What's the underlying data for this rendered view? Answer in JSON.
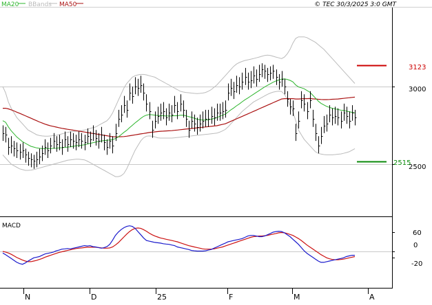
{
  "header": {
    "legend": [
      {
        "label": "MA20",
        "color": "#2db52d"
      },
      {
        "label": "BBands",
        "color": "#bbbbbb"
      },
      {
        "label": "MA50",
        "color": "#aa1111"
      }
    ],
    "credit": "© TEC 30/3/2025 3:0 GMT"
  },
  "levels": {
    "resistance": {
      "label": "3123",
      "value": 3123,
      "color": "#cc0000"
    },
    "support": {
      "label": "2515",
      "value": 2515,
      "color": "#0a8a0a"
    }
  },
  "price_axis": {
    "ticks": [
      "3000",
      "2500"
    ],
    "values": [
      3000,
      2500
    ],
    "ylim": [
      1800,
      3450
    ]
  },
  "macd_panel": {
    "title": "MACD",
    "ticks": [
      "60",
      "0",
      "-20"
    ],
    "values": [
      60,
      0,
      -20
    ],
    "ylim": [
      -45,
      85
    ]
  },
  "time_axis": {
    "labels": [
      "N",
      "D",
      "25",
      "F",
      "M",
      "A"
    ]
  },
  "colors": {
    "bars": "#000000",
    "macd_line": "#1a1acc",
    "signal_line": "#cc1111",
    "grid": "#c8c8c8"
  },
  "chart_data": [
    {
      "type": "ohlc",
      "title": "",
      "y_unit": "price",
      "ylim": [
        1800,
        3450
      ],
      "grid": true,
      "x_labels": [
        "N",
        "D",
        "25",
        "F",
        "M",
        "A"
      ],
      "close": [
        2700,
        2690,
        2610,
        2620,
        2600,
        2590,
        2580,
        2590,
        2560,
        2540,
        2530,
        2520,
        2530,
        2550,
        2570,
        2610,
        2590,
        2620,
        2650,
        2630,
        2640,
        2610,
        2660,
        2630,
        2660,
        2650,
        2640,
        2660,
        2650,
        2640,
        2680,
        2660,
        2700,
        2670,
        2650,
        2690,
        2640,
        2610,
        2650,
        2620,
        2700,
        2790,
        2820,
        2880,
        2850,
        2960,
        2940,
        3000,
        2990,
        3010,
        2960,
        2890,
        2840,
        2720,
        2780,
        2810,
        2830,
        2840,
        2800,
        2830,
        2820,
        2880,
        2840,
        2890,
        2850,
        2790,
        2720,
        2780,
        2760,
        2740,
        2760,
        2780,
        2790,
        2790,
        2810,
        2800,
        2830,
        2830,
        2840,
        2850,
        2960,
        2990,
        2970,
        3010,
        3000,
        3030,
        3060,
        3030,
        3040,
        3070,
        3050,
        3080,
        3110,
        3100,
        3080,
        3090,
        3100,
        3060,
        3030,
        3050,
        3000,
        2920,
        2870,
        2860,
        2700,
        2780,
        2910,
        2890,
        2840,
        2910,
        2790,
        2700,
        2620,
        2680,
        2750,
        2760,
        2820,
        2800,
        2810,
        2800,
        2780,
        2830,
        2810,
        2780,
        2830,
        2800
      ],
      "high": [
        2750,
        2740,
        2670,
        2680,
        2650,
        2640,
        2630,
        2640,
        2600,
        2580,
        2570,
        2560,
        2580,
        2600,
        2620,
        2660,
        2640,
        2670,
        2700,
        2680,
        2690,
        2660,
        2710,
        2680,
        2710,
        2700,
        2690,
        2710,
        2700,
        2690,
        2730,
        2710,
        2750,
        2720,
        2700,
        2740,
        2690,
        2660,
        2700,
        2680,
        2760,
        2850,
        2880,
        2940,
        2910,
        3020,
        3000,
        3060,
        3050,
        3070,
        3020,
        2950,
        2900,
        2780,
        2840,
        2870,
        2890,
        2900,
        2860,
        2890,
        2880,
        2940,
        2900,
        2950,
        2910,
        2850,
        2780,
        2840,
        2820,
        2800,
        2820,
        2840,
        2850,
        2850,
        2870,
        2860,
        2890,
        2890,
        2900,
        2910,
        3020,
        3050,
        3030,
        3070,
        3060,
        3090,
        3120,
        3090,
        3100,
        3130,
        3110,
        3140,
        3150,
        3140,
        3120,
        3130,
        3140,
        3110,
        3080,
        3100,
        3050,
        2970,
        2920,
        2910,
        2760,
        2840,
        2970,
        2950,
        2900,
        2970,
        2850,
        2760,
        2680,
        2740,
        2810,
        2820,
        2880,
        2860,
        2870,
        2860,
        2840,
        2890,
        2870,
        2840,
        2880,
        2850
      ],
      "low": [
        2650,
        2640,
        2560,
        2570,
        2550,
        2540,
        2530,
        2540,
        2510,
        2490,
        2480,
        2470,
        2480,
        2500,
        2520,
        2560,
        2540,
        2570,
        2600,
        2580,
        2590,
        2560,
        2610,
        2580,
        2610,
        2600,
        2590,
        2610,
        2600,
        2590,
        2630,
        2610,
        2650,
        2620,
        2600,
        2640,
        2590,
        2560,
        2600,
        2570,
        2650,
        2740,
        2770,
        2830,
        2800,
        2910,
        2890,
        2950,
        2940,
        2960,
        2910,
        2840,
        2790,
        2670,
        2730,
        2760,
        2780,
        2790,
        2750,
        2780,
        2770,
        2830,
        2790,
        2840,
        2800,
        2740,
        2670,
        2730,
        2710,
        2690,
        2710,
        2730,
        2740,
        2740,
        2760,
        2750,
        2780,
        2780,
        2790,
        2800,
        2910,
        2940,
        2920,
        2960,
        2950,
        2980,
        3010,
        2980,
        2990,
        3020,
        3000,
        3030,
        3060,
        3050,
        3030,
        3040,
        3050,
        3010,
        2980,
        3000,
        2950,
        2870,
        2820,
        2810,
        2650,
        2730,
        2860,
        2840,
        2790,
        2860,
        2740,
        2650,
        2570,
        2630,
        2700,
        2710,
        2770,
        2750,
        2760,
        2750,
        2730,
        2780,
        2760,
        2730,
        2780,
        2750
      ],
      "ma20": [
        2780,
        2770,
        2740,
        2715,
        2695,
        2675,
        2660,
        2645,
        2635,
        2625,
        2615,
        2610,
        2605,
        2602,
        2600,
        2600,
        2600,
        2601,
        2602,
        2603,
        2605,
        2606,
        2608,
        2610,
        2612,
        2615,
        2618,
        2620,
        2622,
        2625,
        2630,
        2634,
        2638,
        2642,
        2646,
        2650,
        2652,
        2654,
        2656,
        2658,
        2665,
        2675,
        2690,
        2705,
        2718,
        2735,
        2750,
        2766,
        2780,
        2795,
        2808,
        2816,
        2820,
        2818,
        2816,
        2814,
        2812,
        2812,
        2810,
        2810,
        2810,
        2812,
        2812,
        2815,
        2816,
        2812,
        2806,
        2802,
        2796,
        2790,
        2786,
        2784,
        2784,
        2786,
        2790,
        2794,
        2800,
        2808,
        2815,
        2822,
        2836,
        2850,
        2862,
        2876,
        2888,
        2902,
        2915,
        2926,
        2938,
        2950,
        2962,
        2974,
        2986,
        2998,
        3008,
        3018,
        3028,
        3036,
        3042,
        3048,
        3050,
        3046,
        3040,
        3030,
        3010,
        2998,
        2992,
        2986,
        2975,
        2964,
        2945,
        2926,
        2906,
        2892,
        2882,
        2872,
        2866,
        2860,
        2856,
        2852,
        2848,
        2846,
        2842,
        2838,
        2834,
        2830
      ],
      "bb_upper": [
        3000,
        2960,
        2900,
        2860,
        2830,
        2800,
        2780,
        2760,
        2740,
        2720,
        2710,
        2700,
        2690,
        2685,
        2682,
        2680,
        2680,
        2682,
        2684,
        2686,
        2690,
        2695,
        2700,
        2705,
        2708,
        2710,
        2712,
        2714,
        2716,
        2720,
        2725,
        2730,
        2735,
        2740,
        2750,
        2760,
        2770,
        2780,
        2800,
        2830,
        2870,
        2910,
        2950,
        2990,
        3020,
        3040,
        3060,
        3070,
        3075,
        3078,
        3078,
        3075,
        3070,
        3065,
        3060,
        3050,
        3040,
        3030,
        3020,
        3010,
        3000,
        2990,
        2980,
        2970,
        2965,
        2962,
        2960,
        2958,
        2956,
        2955,
        2956,
        2958,
        2962,
        2970,
        2980,
        2995,
        3010,
        3030,
        3050,
        3070,
        3090,
        3110,
        3130,
        3145,
        3155,
        3162,
        3168,
        3172,
        3176,
        3180,
        3185,
        3190,
        3195,
        3200,
        3202,
        3200,
        3195,
        3190,
        3185,
        3180,
        3190,
        3210,
        3240,
        3280,
        3310,
        3320,
        3320,
        3320,
        3315,
        3305,
        3295,
        3285,
        3270,
        3255,
        3240,
        3220,
        3200,
        3180,
        3160,
        3140,
        3120,
        3100,
        3080,
        3060,
        3040,
        3020
      ],
      "bb_lower": [
        2560,
        2540,
        2520,
        2500,
        2490,
        2480,
        2470,
        2465,
        2460,
        2460,
        2462,
        2465,
        2470,
        2475,
        2480,
        2485,
        2490,
        2495,
        2500,
        2505,
        2510,
        2515,
        2520,
        2525,
        2528,
        2530,
        2532,
        2532,
        2530,
        2528,
        2520,
        2510,
        2500,
        2490,
        2480,
        2470,
        2460,
        2450,
        2440,
        2430,
        2420,
        2420,
        2425,
        2440,
        2470,
        2510,
        2550,
        2590,
        2620,
        2650,
        2670,
        2680,
        2682,
        2680,
        2676,
        2670,
        2668,
        2668,
        2668,
        2668,
        2668,
        2670,
        2672,
        2674,
        2676,
        2678,
        2680,
        2682,
        2684,
        2686,
        2688,
        2690,
        2692,
        2694,
        2696,
        2698,
        2700,
        2706,
        2714,
        2724,
        2740,
        2760,
        2780,
        2800,
        2820,
        2840,
        2855,
        2870,
        2885,
        2900,
        2910,
        2920,
        2930,
        2940,
        2950,
        2958,
        2964,
        2968,
        2970,
        2968,
        2950,
        2920,
        2880,
        2840,
        2780,
        2720,
        2690,
        2660,
        2640,
        2620,
        2600,
        2580,
        2570,
        2565,
        2562,
        2560,
        2560,
        2560,
        2562,
        2564,
        2566,
        2570,
        2575,
        2580,
        2590,
        2600
      ],
      "ma50": [
        2860,
        2860,
        2856,
        2850,
        2843,
        2835,
        2828,
        2820,
        2812,
        2804,
        2796,
        2788,
        2780,
        2772,
        2765,
        2758,
        2752,
        2747,
        2743,
        2739,
        2735,
        2731,
        2728,
        2725,
        2722,
        2719,
        2716,
        2713,
        2710,
        2707,
        2704,
        2701,
        2698,
        2695,
        2692,
        2689,
        2686,
        2683,
        2680,
        2677,
        2676,
        2676,
        2677,
        2678,
        2680,
        2683,
        2686,
        2689,
        2692,
        2695,
        2698,
        2701,
        2704,
        2706,
        2708,
        2710,
        2712,
        2713,
        2714,
        2715,
        2716,
        2718,
        2720,
        2722,
        2724,
        2726,
        2728,
        2730,
        2732,
        2734,
        2736,
        2738,
        2740,
        2742,
        2744,
        2746,
        2748,
        2752,
        2756,
        2760,
        2768,
        2776,
        2784,
        2792,
        2800,
        2808,
        2816,
        2824,
        2832,
        2840,
        2848,
        2856,
        2864,
        2872,
        2880,
        2888,
        2896,
        2904,
        2912,
        2920,
        2922,
        2922,
        2922,
        2922,
        2920,
        2920,
        2921,
        2922,
        2922,
        2923,
        2921,
        2920,
        2918,
        2917,
        2916,
        2916,
        2917,
        2918,
        2919,
        2920,
        2922,
        2924,
        2926,
        2928,
        2930,
        2932
      ]
    },
    {
      "type": "line",
      "title": "MACD",
      "y_unit": "MACD",
      "ylim": [
        -45,
        85
      ],
      "grid": true,
      "series": [
        {
          "name": "",
          "values": [
            -5,
            -10,
            -16,
            -22,
            -28,
            -34,
            -38,
            -40,
            -36,
            -30,
            -25,
            -20,
            -18,
            -16,
            -12,
            -8,
            -6,
            -4,
            -2,
            2,
            4,
            7,
            8,
            9,
            8,
            10,
            12,
            14,
            16,
            18,
            17,
            18,
            15,
            14,
            12,
            10,
            12,
            15,
            22,
            35,
            50,
            60,
            68,
            74,
            78,
            80,
            78,
            72,
            62,
            52,
            42,
            34,
            32,
            30,
            28,
            27,
            26,
            24,
            23,
            22,
            20,
            18,
            14,
            12,
            10,
            8,
            6,
            3,
            2,
            1,
            1,
            1,
            2,
            4,
            6,
            10,
            14,
            18,
            22,
            26,
            30,
            32,
            34,
            36,
            38,
            40,
            44,
            48,
            50,
            50,
            48,
            46,
            46,
            48,
            52,
            56,
            60,
            62,
            63,
            62,
            58,
            52,
            46,
            38,
            30,
            22,
            12,
            2,
            -6,
            -12,
            -18,
            -24,
            -30,
            -34,
            -34,
            -32,
            -30,
            -28,
            -26,
            -24,
            -22,
            -20,
            -16,
            -14,
            -12,
            -12
          ]
        },
        {
          "name": "",
          "values": [
            0,
            -2,
            -5,
            -9,
            -14,
            -19,
            -23,
            -27,
            -30,
            -32,
            -32,
            -30,
            -28,
            -25,
            -22,
            -18,
            -15,
            -12,
            -9,
            -6,
            -3,
            -1,
            1,
            3,
            5,
            7,
            9,
            10,
            11,
            12,
            13,
            13,
            13,
            13,
            12,
            11,
            10,
            10,
            11,
            14,
            20,
            27,
            36,
            45,
            54,
            62,
            68,
            72,
            73,
            72,
            68,
            63,
            57,
            52,
            48,
            45,
            42,
            40,
            38,
            36,
            34,
            32,
            30,
            27,
            24,
            21,
            18,
            16,
            14,
            12,
            10,
            8,
            7,
            7,
            7,
            8,
            10,
            12,
            14,
            17,
            20,
            23,
            26,
            29,
            32,
            35,
            38,
            41,
            44,
            46,
            47,
            48,
            48,
            49,
            50,
            52,
            54,
            56,
            58,
            59,
            58,
            56,
            53,
            50,
            45,
            40,
            34,
            27,
            20,
            14,
            8,
            2,
            -4,
            -10,
            -15,
            -20,
            -23,
            -25,
            -26,
            -26,
            -25,
            -24,
            -22,
            -20,
            -18,
            -16
          ]
        }
      ]
    }
  ]
}
